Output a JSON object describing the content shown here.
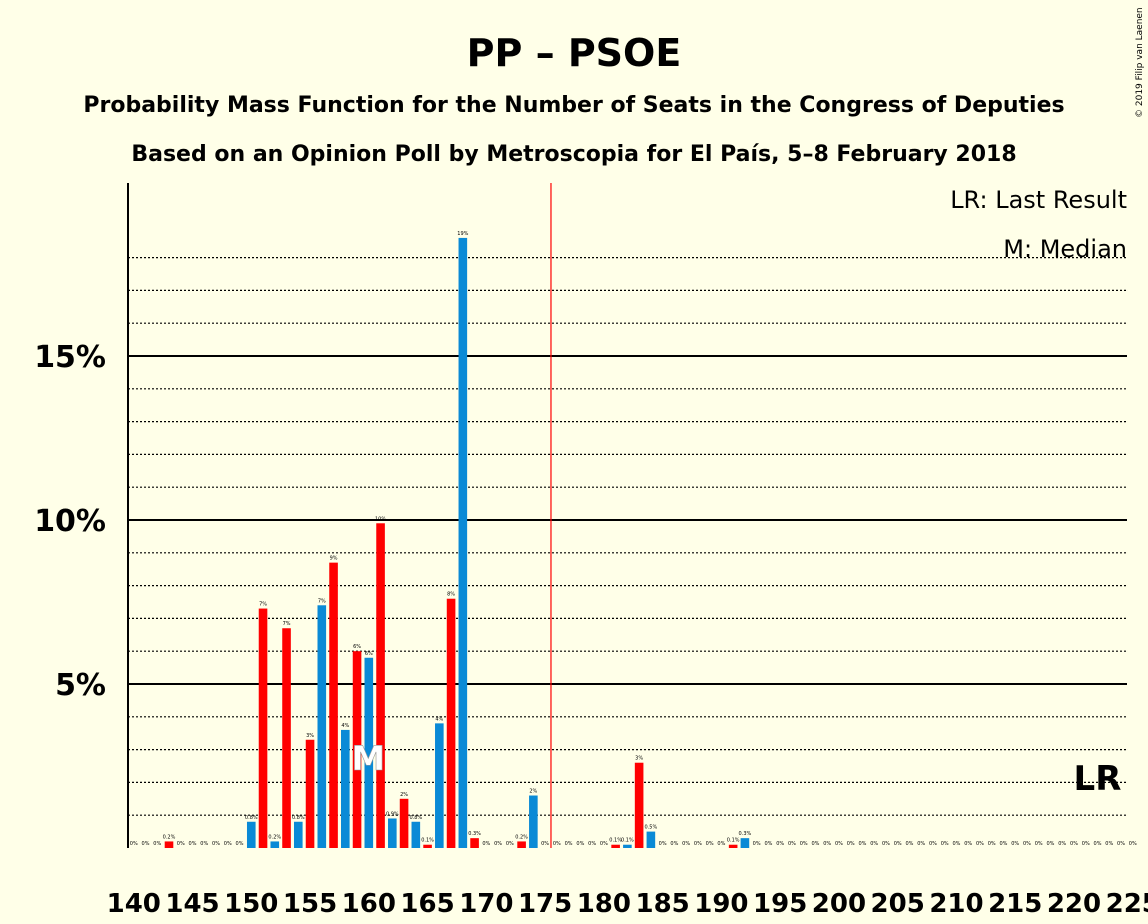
{
  "chart_data": {
    "type": "bar",
    "title": "PP – PSOE",
    "subtitle": "Probability Mass Function for the Number of Seats in the Congress of Deputies",
    "subtitle2": "Based on an Opinion Poll by Metroscopia for El País, 5–8 February 2018",
    "copyright": "© 2019 Filip van Laenen",
    "legend": {
      "placement": "top-right",
      "lr": "LR: Last Result",
      "median": "M: Median"
    },
    "colors": {
      "blue": "#0A8AD6",
      "red": "#FF0000",
      "background": "#FFFFE8",
      "majority_line": "#FF0000"
    },
    "x_range": [
      140,
      225
    ],
    "x_tick_labels": [
      "140",
      "145",
      "150",
      "155",
      "160",
      "165",
      "170",
      "175",
      "180",
      "185",
      "190",
      "195",
      "200",
      "205",
      "210",
      "215",
      "220",
      "225"
    ],
    "ylim": [
      0,
      20
    ],
    "y_tick_labels": [
      {
        "value": 5,
        "label": "5%"
      },
      {
        "value": 10,
        "label": "10%"
      },
      {
        "value": 15,
        "label": "15%"
      }
    ],
    "minor_gridlines": [
      1,
      2,
      3,
      4,
      6,
      7,
      8,
      9,
      11,
      12,
      13,
      14,
      16,
      17,
      18
    ],
    "majority_seat": 175.5,
    "median_seat": 160,
    "median_label": "M",
    "last_result_seat": 222,
    "last_result_label": "LR",
    "seats": [
      140,
      141,
      142,
      143,
      144,
      145,
      146,
      147,
      148,
      149,
      150,
      151,
      152,
      153,
      154,
      155,
      156,
      157,
      158,
      159,
      160,
      161,
      162,
      163,
      164,
      165,
      166,
      167,
      168,
      169,
      170,
      171,
      172,
      173,
      174,
      175,
      176,
      177,
      178,
      179,
      180,
      181,
      182,
      183,
      184,
      185,
      186,
      187,
      188,
      189,
      190,
      191,
      192,
      193,
      194,
      195,
      196,
      197,
      198,
      199,
      200,
      201,
      202,
      203,
      204,
      205,
      206,
      207,
      208,
      209,
      210,
      211,
      212,
      213,
      214,
      215,
      216,
      217,
      218,
      219,
      220,
      221,
      222,
      223,
      224,
      225
    ],
    "values": [
      0,
      0,
      0,
      0.2,
      0,
      0,
      0,
      0,
      0,
      0,
      0.8,
      7.3,
      0.2,
      6.7,
      0.8,
      3.3,
      7.4,
      8.7,
      3.6,
      6.0,
      5.8,
      9.9,
      0.9,
      1.5,
      0.8,
      0.1,
      3.8,
      7.6,
      18.6,
      0.3,
      0,
      0,
      0,
      0.2,
      1.6,
      0,
      0,
      0,
      0,
      0,
      0,
      0.1,
      0.1,
      2.6,
      0.5,
      0,
      0,
      0,
      0,
      0,
      0,
      0.1,
      0.3,
      0,
      0,
      0,
      0,
      0,
      0,
      0,
      0,
      0,
      0,
      0,
      0,
      0,
      0,
      0,
      0,
      0,
      0,
      0,
      0,
      0,
      0,
      0,
      0,
      0,
      0,
      0,
      0,
      0,
      0,
      0,
      0,
      0
    ],
    "bar_labels": [
      "0%",
      "0%",
      "0%",
      "0.2%",
      "0%",
      "0%",
      "0%",
      "0%",
      "0%",
      "0%",
      "0.8%",
      "7%",
      "0.2%",
      "7%",
      "0.8%",
      "3%",
      "7%",
      "9%",
      "4%",
      "6%",
      "6%",
      "10%",
      "0.9%",
      "2%",
      "0.8%",
      "0.1%",
      "4%",
      "8%",
      "19%",
      "0.3%",
      "0%",
      "0%",
      "0%",
      "0.2%",
      "2%",
      "0%",
      "0%",
      "0%",
      "0%",
      "0%",
      "0%",
      "0.1%",
      "0.1%",
      "3%",
      "0.5%",
      "0%",
      "0%",
      "0%",
      "0%",
      "0%",
      "0%",
      "0.1%",
      "0.3%",
      "0%",
      "0%",
      "0%",
      "0%",
      "0%",
      "0%",
      "0%",
      "0%",
      "0%",
      "0%",
      "0%",
      "0%",
      "0%",
      "0%",
      "0%",
      "0%",
      "0%",
      "0%",
      "0%",
      "0%",
      "0%",
      "0%",
      "0%",
      "0%",
      "0%",
      "0%",
      "0%",
      "0%",
      "0%",
      "0%",
      "0%",
      "0%",
      "0%"
    ]
  }
}
